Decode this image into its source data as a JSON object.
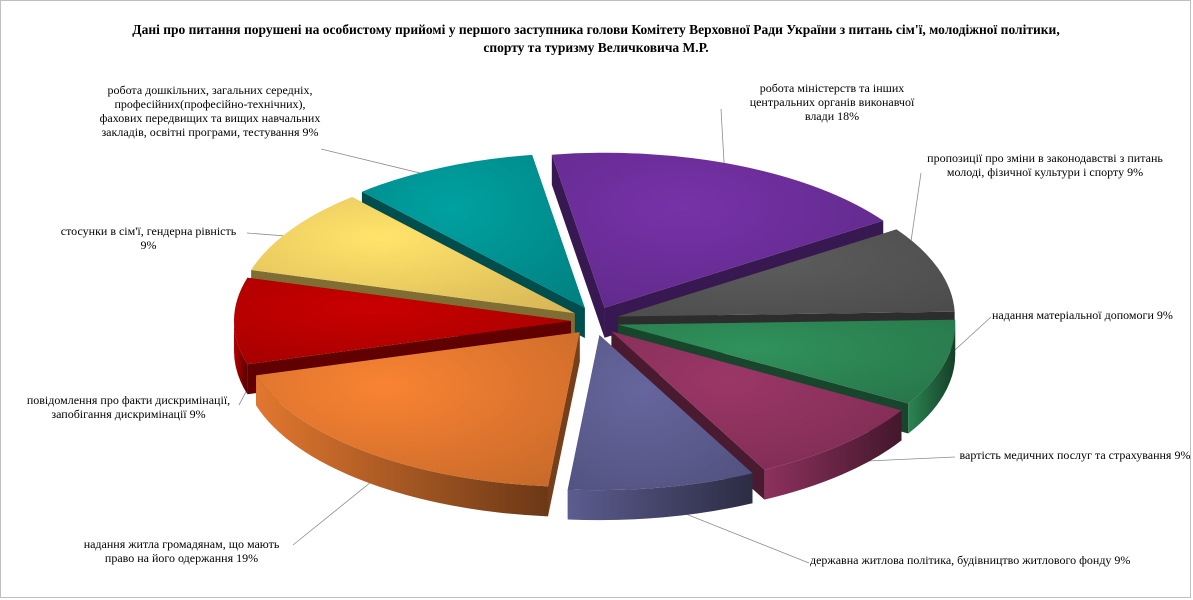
{
  "chart_data": {
    "type": "pie",
    "title": "Дані про питання порушені на особистому прийомі у першого заступника голови Комітету Верховної Ради України з питань сім'ї, молодіжної політики, спорту та туризму Величковича М.Р.",
    "slices": [
      {
        "label": "робота міністерств та інших центральних органів виконавчої влади",
        "value": 18,
        "percent": "18%",
        "color": "#7030A0"
      },
      {
        "label": "пропозиції про зміни в законодавстві з питань молоді, фізичної культури і спорту",
        "value": 9,
        "percent": "9%",
        "color": "#595959"
      },
      {
        "label": "надання матеріальної допомоги",
        "value": 9,
        "percent": "9%",
        "color": "#2E8B57"
      },
      {
        "label": "вартість медичних послуг та страхування",
        "value": 9,
        "percent": "9%",
        "color": "#943462"
      },
      {
        "label": "державна житлова політика, будівництво житлового фонду",
        "value": 9,
        "percent": "9%",
        "color": "#616196"
      },
      {
        "label": "надання житла громадянам, що мають право на його одержання",
        "value": 19,
        "percent": "19%",
        "color": "#ED7D31"
      },
      {
        "label": "повідомлення про факти дискримінації, запобігання дискримінації",
        "value": 9,
        "percent": "9%",
        "color": "#C00000"
      },
      {
        "label": "стосунки в сім'ї, гендерна рівність",
        "value": 9,
        "percent": "9%",
        "color": "#FFD966"
      },
      {
        "label": "робота дошкільних, загальних середніх, професійних(професійно-технічних), фахових передвищих та вищих навчальних закладів, освітні програми, тестування",
        "value": 9,
        "percent": "9%",
        "color": "#009999"
      }
    ],
    "legend": "none",
    "style": "3d-exploded"
  }
}
